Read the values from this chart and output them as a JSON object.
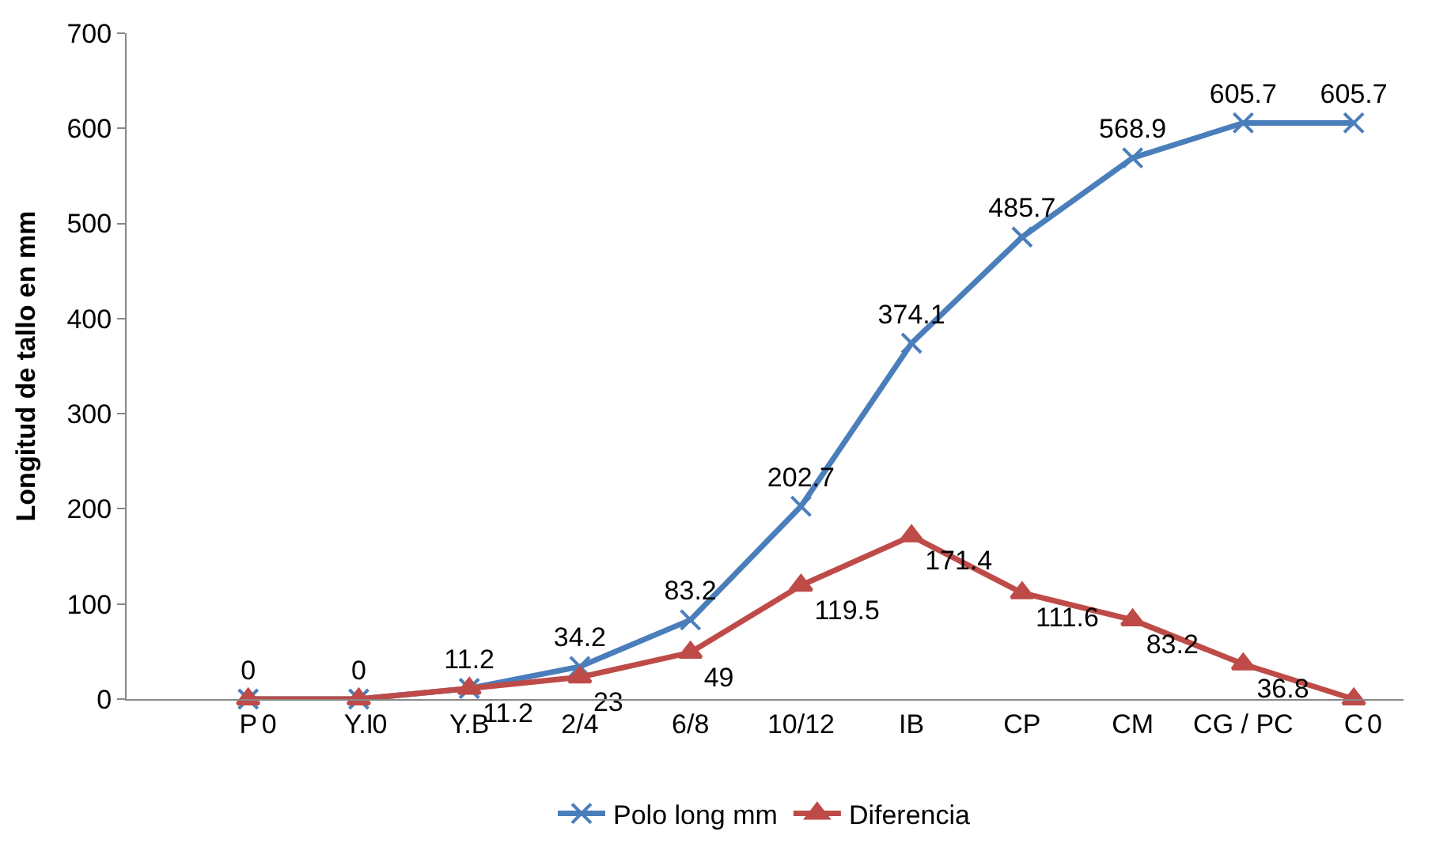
{
  "chart_data": {
    "type": "line",
    "ylabel": "Longitud de tallo en mm",
    "categories": [
      "P",
      "Y.I",
      "Y.B",
      "2/4",
      "6/8",
      "10/12",
      "IB",
      "CP",
      "CM",
      "CG / PC",
      "C"
    ],
    "series": [
      {
        "name": "Polo long mm",
        "color": "#4a7ebb",
        "marker": "cross",
        "values": [
          0,
          0,
          11.2,
          34.2,
          83.2,
          202.7,
          374.1,
          485.7,
          568.9,
          605.7,
          605.7
        ]
      },
      {
        "name": "Diferencia",
        "color": "#be4b48",
        "marker": "triangle",
        "values": [
          0,
          0,
          11.2,
          23,
          49,
          119.5,
          171.4,
          111.6,
          83.2,
          36.8,
          0
        ]
      }
    ],
    "ylim": [
      0,
      700
    ],
    "yticks": [
      0,
      100,
      200,
      300,
      400,
      500,
      600,
      700
    ],
    "grid": false,
    "legend": "bottom",
    "data_labels": true
  }
}
